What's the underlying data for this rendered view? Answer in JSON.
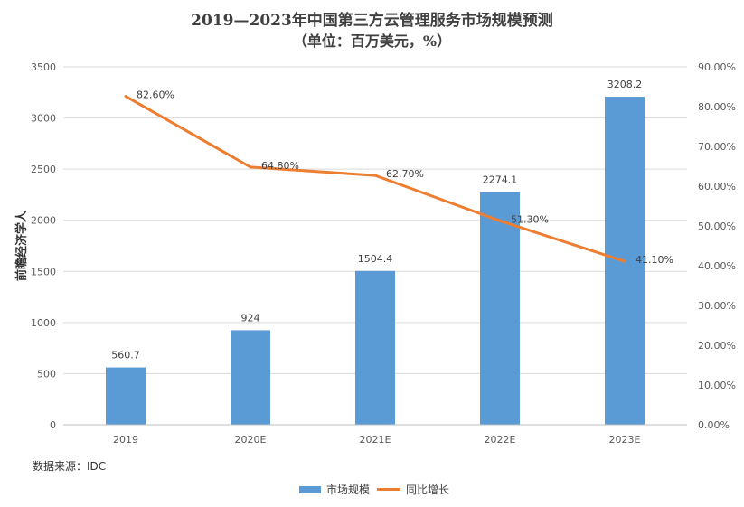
{
  "chart_data": {
    "type": "bar",
    "title": "2019—2023年中国第三方云管理服务市场规模预测",
    "subtitle": "（单位：百万美元，%）",
    "categories": [
      "2019",
      "2020E",
      "2021E",
      "2022E",
      "2023E"
    ],
    "series": [
      {
        "name": "市场规模",
        "type": "bar",
        "axis": "left",
        "color": "#5b9bd5",
        "values": [
          560.7,
          924,
          1504.4,
          2274.1,
          3208.2
        ],
        "labels": [
          "560.7",
          "924",
          "1504.4",
          "2274.1",
          "3208.2"
        ]
      },
      {
        "name": "同比增长",
        "type": "line",
        "axis": "right",
        "color": "#ed7d31",
        "values": [
          82.6,
          64.8,
          62.7,
          51.3,
          41.1
        ],
        "labels": [
          "82.60%",
          "64.80%",
          "62.70%",
          "51.30%",
          "41.10%"
        ]
      }
    ],
    "ylabel": "",
    "ylim": [
      0,
      3500
    ],
    "yticks": [
      "0",
      "500",
      "1000",
      "1500",
      "2000",
      "2500",
      "3000",
      "3500"
    ],
    "y2lim": [
      0,
      90
    ],
    "y2ticks": [
      "0.00%",
      "10.00%",
      "20.00%",
      "30.00%",
      "40.00%",
      "50.00%",
      "60.00%",
      "70.00%",
      "80.00%",
      "90.00%"
    ],
    "grid": true,
    "legend_position": "bottom",
    "source": "数据来源：IDC",
    "watermark": "前瞻经济学人"
  }
}
